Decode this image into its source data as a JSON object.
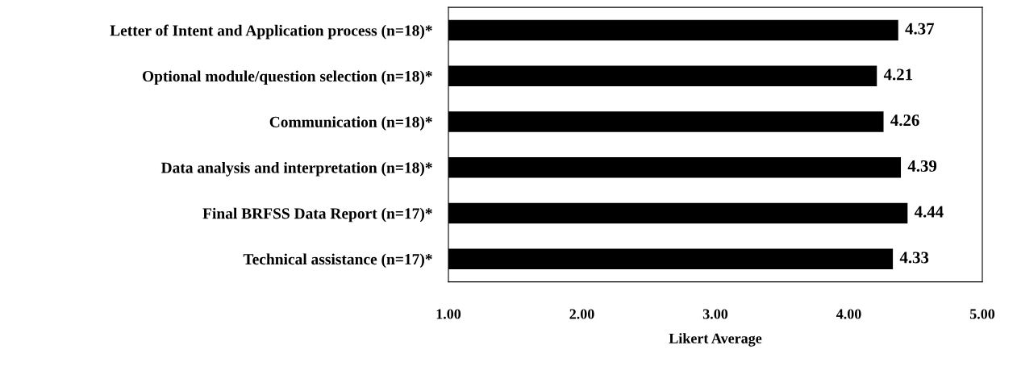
{
  "chart_data": {
    "type": "bar",
    "orientation": "horizontal",
    "xlabel": "Likert Average",
    "categories": [
      "Letter of Intent and Application process (n=18)*",
      "Optional module/question selection (n=18)*",
      "Communication (n=18)*",
      "Data analysis and interpretation (n=18)*",
      "Final BRFSS Data Report (n=17)*",
      "Technical assistance (n=17)*"
    ],
    "values": [
      4.37,
      4.21,
      4.26,
      4.39,
      4.44,
      4.33
    ],
    "value_labels": [
      "4.37",
      "4.21",
      "4.26",
      "4.39",
      "4.44",
      "4.33"
    ],
    "color": "#000000",
    "xlim": [
      1,
      5
    ],
    "xticks": [
      {
        "value": 1,
        "label": "1.00"
      },
      {
        "value": 2,
        "label": "2.00"
      },
      {
        "value": 3,
        "label": "3.00"
      },
      {
        "value": 4,
        "label": "4.00"
      },
      {
        "value": 5,
        "label": "5.00"
      }
    ],
    "grid": false,
    "legend": false
  }
}
